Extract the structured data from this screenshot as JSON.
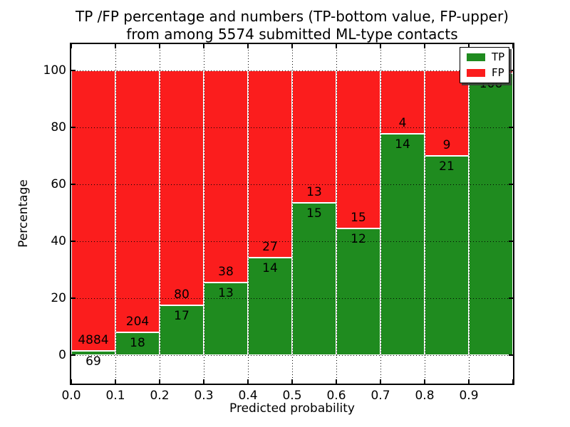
{
  "chart_data": {
    "type": "bar",
    "stacked": true,
    "orientation": "vertical",
    "title": "TP /FP percentage and numbers (TP-bottom value, FP-upper)\nfrom among 5574 submitted ML-type contacts",
    "title_lines": [
      "TP /FP percentage and numbers (TP-bottom value, FP-upper)",
      "from among 5574 submitted ML-type contacts"
    ],
    "xlabel": "Predicted probability",
    "ylabel": "Percentage",
    "total_contacts": 5574,
    "categories": [
      "0.0-0.1",
      "0.1-0.2",
      "0.2-0.3",
      "0.3-0.4",
      "0.4-0.5",
      "0.5-0.6",
      "0.6-0.7",
      "0.7-0.8",
      "0.8-0.9",
      "0.9-1.0"
    ],
    "x_tick_labels": [
      "0.0",
      "0.1",
      "0.2",
      "0.3",
      "0.4",
      "0.5",
      "0.6",
      "0.7",
      "0.8",
      "0.9"
    ],
    "y_ticks": [
      0,
      20,
      40,
      60,
      80,
      100
    ],
    "xlim": [
      0.0,
      1.0
    ],
    "ylim": [
      -10,
      109.25
    ],
    "units": "percent of bin total (bars normalized to 100%)",
    "grid": {
      "style": "dotted",
      "color": "#000000"
    },
    "series": [
      {
        "name": "TP",
        "color": "#1f8b1f",
        "counts": [
          69,
          18,
          17,
          13,
          14,
          15,
          12,
          14,
          21,
          106
        ],
        "percent": [
          1.39,
          8.11,
          17.53,
          25.49,
          34.15,
          53.57,
          44.44,
          77.78,
          70.0,
          99.07
        ]
      },
      {
        "name": "FP",
        "color": "#fb1d1d",
        "counts": [
          4884,
          204,
          80,
          38,
          27,
          13,
          15,
          4,
          9,
          1
        ],
        "percent": [
          98.61,
          91.89,
          82.47,
          74.51,
          65.85,
          46.43,
          55.56,
          22.22,
          30.0,
          0.93
        ]
      }
    ],
    "legend": {
      "position": "upper right",
      "entries": [
        {
          "label": "TP",
          "color": "#1f8b1f"
        },
        {
          "label": "FP",
          "color": "#fb1d1d"
        }
      ]
    }
  },
  "colors": {
    "tp_green": "#1f8b1f",
    "fp_red": "#fb1d1d",
    "background": "#ffffff",
    "axis": "#000000",
    "bar_edge": "#ffffff"
  }
}
